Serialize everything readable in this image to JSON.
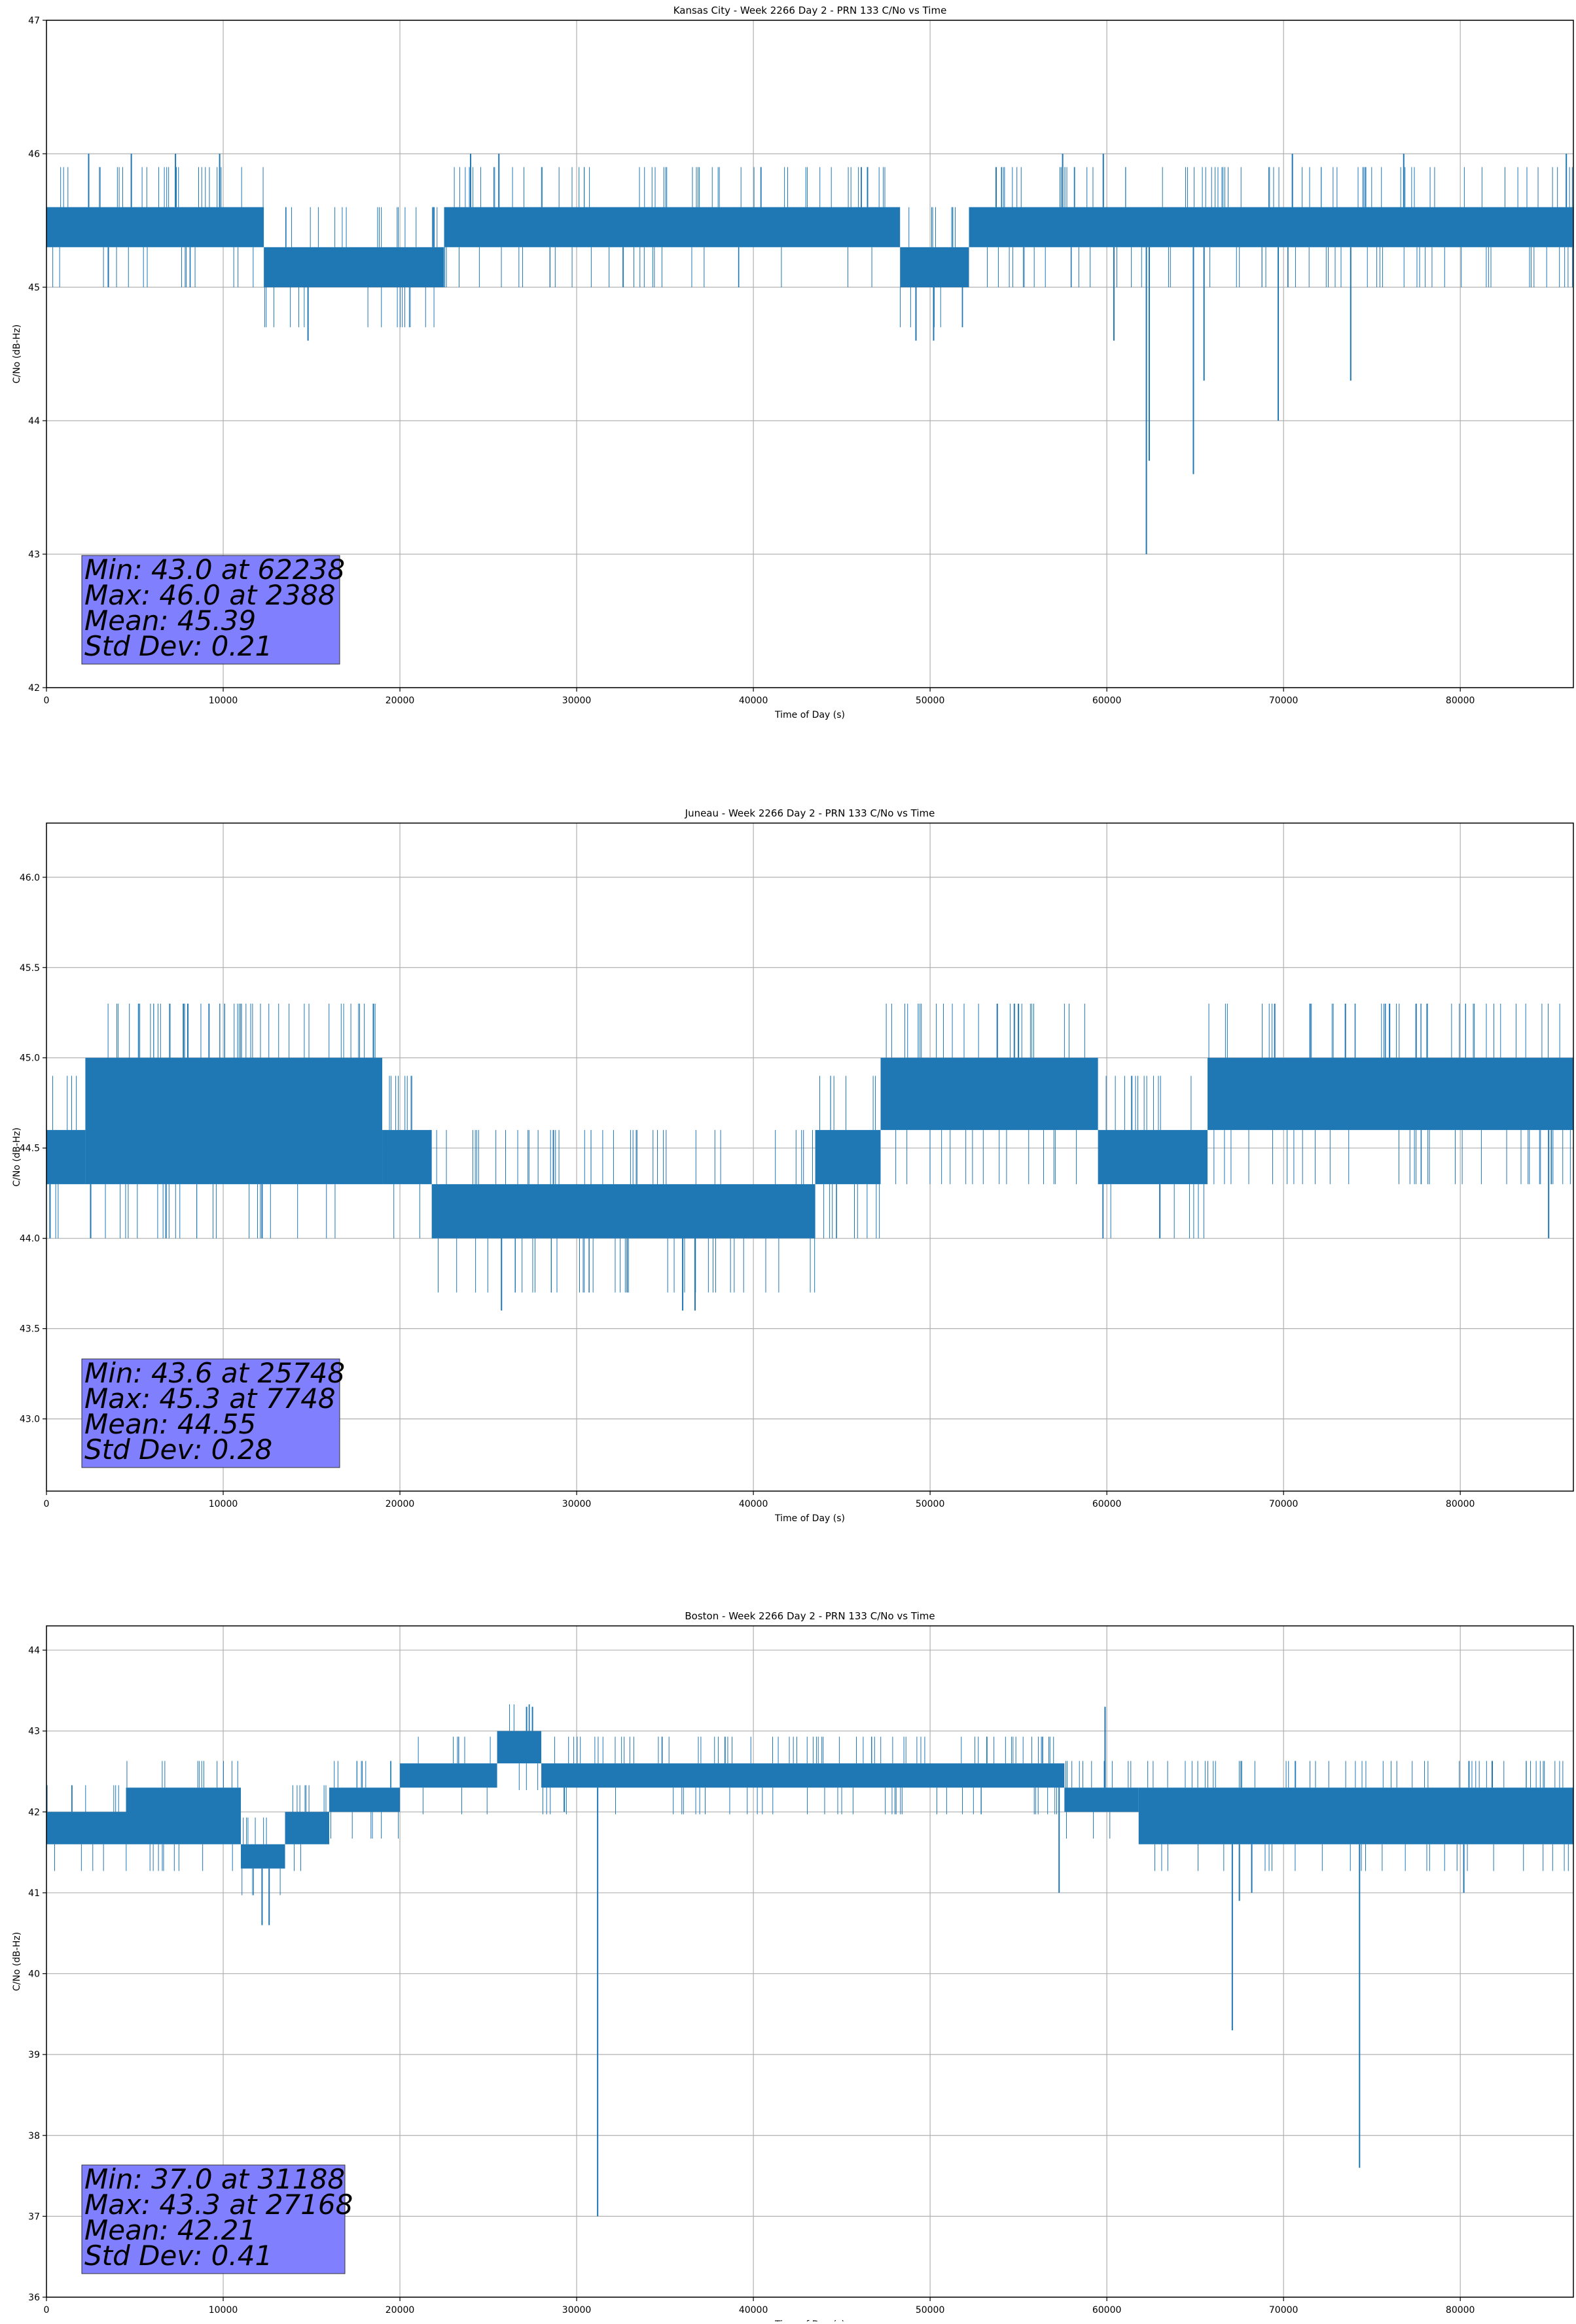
{
  "figure": {
    "colors": {
      "series": "#1f77b4",
      "grid": "#b0b0b0",
      "stats_box": "#8080ff",
      "axes": "#000000"
    }
  },
  "chart_data": [
    {
      "type": "line",
      "title": "Kansas City - Week 2266 Day 2 - PRN 133 C/No vs Time",
      "xlabel": "Time of Day (s)",
      "ylabel": "C/No (dB-Hz)",
      "xlim": [
        0,
        86400
      ],
      "ylim": [
        42,
        47
      ],
      "xticks": [
        0,
        10000,
        20000,
        30000,
        40000,
        50000,
        60000,
        70000,
        80000
      ],
      "xtick_labels": [
        "0",
        "10000",
        "20000",
        "30000",
        "40000",
        "50000",
        "60000",
        "70000",
        "80000"
      ],
      "yticks": [
        42,
        43,
        44,
        45,
        46,
        47
      ],
      "ytick_labels": [
        "42",
        "43",
        "44",
        "45",
        "46",
        "47"
      ],
      "grid": true,
      "series_color": "#1f77b4",
      "bands": [
        {
          "x": [
            0,
            12300
          ],
          "low": 45.3,
          "high": 45.6
        },
        {
          "x": [
            12300,
            22500
          ],
          "low": 45.0,
          "high": 45.3
        },
        {
          "x": [
            22500,
            48300
          ],
          "low": 45.3,
          "high": 45.6
        },
        {
          "x": [
            48300,
            52200
          ],
          "low": 45.0,
          "high": 45.3
        },
        {
          "x": [
            52200,
            86400
          ],
          "low": 45.3,
          "high": 45.6
        }
      ],
      "spikes": [
        {
          "x": 3500,
          "y": 45.0
        },
        {
          "x": 14800,
          "y": 44.6
        },
        {
          "x": 49200,
          "y": 44.6
        },
        {
          "x": 50200,
          "y": 44.6
        },
        {
          "x": 60400,
          "y": 44.6
        },
        {
          "x": 62238,
          "y": 43.0
        },
        {
          "x": 62400,
          "y": 43.7
        },
        {
          "x": 64900,
          "y": 43.6
        },
        {
          "x": 65500,
          "y": 44.3
        },
        {
          "x": 69700,
          "y": 44.0
        },
        {
          "x": 73800,
          "y": 44.3
        }
      ],
      "upper_spikes": [
        {
          "x": 2388,
          "y": 46.0
        },
        {
          "x": 4800,
          "y": 46.0
        },
        {
          "x": 7300,
          "y": 46.0
        },
        {
          "x": 9800,
          "y": 46.0
        },
        {
          "x": 24000,
          "y": 46.0
        },
        {
          "x": 25600,
          "y": 46.0
        },
        {
          "x": 57500,
          "y": 46.0
        },
        {
          "x": 59800,
          "y": 46.0
        },
        {
          "x": 70500,
          "y": 46.0
        },
        {
          "x": 76800,
          "y": 46.0
        },
        {
          "x": 86000,
          "y": 46.0
        }
      ],
      "stats": [
        "Min: 43.0 at 62238",
        "Max: 46.0 at 2388",
        "Mean: 45.39",
        "Std Dev: 0.21"
      ]
    },
    {
      "type": "line",
      "title": "Juneau - Week 2266 Day 2 - PRN 133 C/No vs Time",
      "xlabel": "Time of Day (s)",
      "ylabel": "C/No (dB-Hz)",
      "xlim": [
        0,
        86400
      ],
      "ylim": [
        42.6,
        46.3
      ],
      "xticks": [
        0,
        10000,
        20000,
        30000,
        40000,
        50000,
        60000,
        70000,
        80000
      ],
      "xtick_labels": [
        "0",
        "10000",
        "20000",
        "30000",
        "40000",
        "50000",
        "60000",
        "70000",
        "80000"
      ],
      "yticks": [
        43.0,
        43.5,
        44.0,
        44.5,
        45.0,
        45.5,
        46.0
      ],
      "ytick_labels": [
        "43.0",
        "43.5",
        "44.0",
        "44.5",
        "45.0",
        "45.5",
        "46.0"
      ],
      "grid": true,
      "series_color": "#1f77b4",
      "bands": [
        {
          "x": [
            0,
            2200
          ],
          "low": 44.3,
          "high": 44.6
        },
        {
          "x": [
            2200,
            19000
          ],
          "low": 44.3,
          "high": 45.0
        },
        {
          "x": [
            19000,
            21800
          ],
          "low": 44.3,
          "high": 44.6
        },
        {
          "x": [
            21800,
            43500
          ],
          "low": 44.0,
          "high": 44.3
        },
        {
          "x": [
            43500,
            47200
          ],
          "low": 44.3,
          "high": 44.6
        },
        {
          "x": [
            47200,
            59500
          ],
          "low": 44.6,
          "high": 45.0
        },
        {
          "x": [
            59500,
            65700
          ],
          "low": 44.3,
          "high": 44.6
        },
        {
          "x": [
            65700,
            86400
          ],
          "low": 44.6,
          "high": 45.0
        }
      ],
      "spikes": [
        {
          "x": 200,
          "y": 44.0
        },
        {
          "x": 2500,
          "y": 44.0
        },
        {
          "x": 12200,
          "y": 44.0
        },
        {
          "x": 25748,
          "y": 43.6
        },
        {
          "x": 36000,
          "y": 43.6
        },
        {
          "x": 36700,
          "y": 43.6
        },
        {
          "x": 63000,
          "y": 44.0
        },
        {
          "x": 85000,
          "y": 44.0
        }
      ],
      "upper_spikes": [
        {
          "x": 7748,
          "y": 45.3
        },
        {
          "x": 8000,
          "y": 45.3
        },
        {
          "x": 18500,
          "y": 45.3
        },
        {
          "x": 53800,
          "y": 45.3
        },
        {
          "x": 55000,
          "y": 45.3
        },
        {
          "x": 69500,
          "y": 45.3
        },
        {
          "x": 71500,
          "y": 45.3
        },
        {
          "x": 73500,
          "y": 45.3
        },
        {
          "x": 76000,
          "y": 45.3
        },
        {
          "x": 77500,
          "y": 45.3
        }
      ],
      "stats": [
        "Min: 43.6 at 25748",
        "Max: 45.3 at 7748",
        "Mean: 44.55",
        "Std Dev: 0.28"
      ]
    },
    {
      "type": "line",
      "title": "Boston - Week 2266 Day 2 - PRN 133 C/No vs Time",
      "xlabel": "Time of Day (s)",
      "ylabel": "C/No (dB-Hz)",
      "xlim": [
        0,
        86400
      ],
      "ylim": [
        36,
        44.3
      ],
      "xticks": [
        0,
        10000,
        20000,
        30000,
        40000,
        50000,
        60000,
        70000,
        80000
      ],
      "xtick_labels": [
        "0",
        "10000",
        "20000",
        "30000",
        "40000",
        "50000",
        "60000",
        "70000",
        "80000"
      ],
      "yticks": [
        36,
        37,
        38,
        39,
        40,
        41,
        42,
        43,
        44
      ],
      "ytick_labels": [
        "36",
        "37",
        "38",
        "39",
        "40",
        "41",
        "42",
        "43",
        "44"
      ],
      "grid": true,
      "series_color": "#1f77b4",
      "bands": [
        {
          "x": [
            0,
            4500
          ],
          "low": 41.6,
          "high": 42.0
        },
        {
          "x": [
            4500,
            11000
          ],
          "low": 41.6,
          "high": 42.3
        },
        {
          "x": [
            11000,
            13500
          ],
          "low": 41.3,
          "high": 41.6
        },
        {
          "x": [
            13500,
            16000
          ],
          "low": 41.6,
          "high": 42.0
        },
        {
          "x": [
            16000,
            20000
          ],
          "low": 42.0,
          "high": 42.3
        },
        {
          "x": [
            20000,
            25500
          ],
          "low": 42.3,
          "high": 42.6
        },
        {
          "x": [
            25500,
            28000
          ],
          "low": 42.6,
          "high": 43.0
        },
        {
          "x": [
            28000,
            57600
          ],
          "low": 42.3,
          "high": 42.6
        },
        {
          "x": [
            57600,
            61800
          ],
          "low": 42.0,
          "high": 42.3
        },
        {
          "x": [
            61800,
            86400
          ],
          "low": 41.6,
          "high": 42.3
        }
      ],
      "spikes": [
        {
          "x": 12200,
          "y": 40.6
        },
        {
          "x": 12600,
          "y": 40.6
        },
        {
          "x": 29300,
          "y": 42.0
        },
        {
          "x": 31188,
          "y": 37.0
        },
        {
          "x": 57300,
          "y": 41.0
        },
        {
          "x": 67100,
          "y": 39.3
        },
        {
          "x": 67500,
          "y": 40.9
        },
        {
          "x": 68200,
          "y": 41.0
        },
        {
          "x": 74300,
          "y": 37.6
        },
        {
          "x": 80200,
          "y": 41.0
        }
      ],
      "upper_spikes": [
        {
          "x": 27168,
          "y": 43.3
        },
        {
          "x": 27500,
          "y": 43.3
        },
        {
          "x": 59900,
          "y": 43.3
        }
      ],
      "stats": [
        "Min: 37.0 at 31188",
        "Max: 43.3 at 27168",
        "Mean: 42.21",
        "Std Dev: 0.41"
      ]
    }
  ]
}
